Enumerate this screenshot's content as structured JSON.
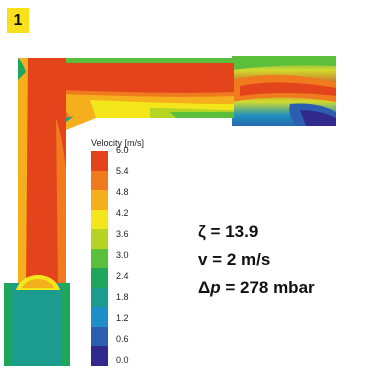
{
  "figure_number": "1",
  "legend": {
    "title": "Velocity [m/s]",
    "ticks": [
      "6.0",
      "5.4",
      "4.8",
      "4.2",
      "3.6",
      "3.0",
      "2.4",
      "1.8",
      "1.2",
      "0.6",
      "0.0"
    ],
    "colors": [
      "#e3441c",
      "#ef7b1e",
      "#f5ae1c",
      "#f3e61a",
      "#b5d424",
      "#5cbf3b",
      "#1fa65a",
      "#1c9c8e",
      "#1e8ec9",
      "#2b5eb1",
      "#312a8c"
    ]
  },
  "results": {
    "zeta_label": "ζ = 13.9",
    "velocity_label": "v = 2 m/s",
    "pressure_symbol": "Δ",
    "pressure_var": "p",
    "pressure_value": " = 278 mbar"
  }
}
